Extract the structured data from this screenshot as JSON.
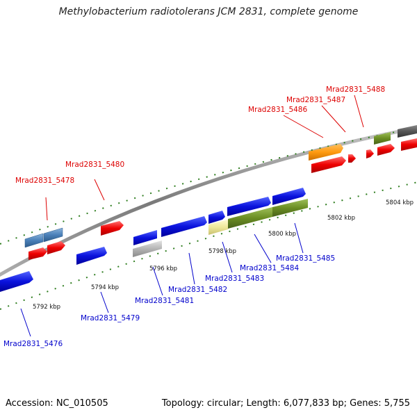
{
  "title": "Methylobacterium radiotolerans JCM 2831, complete genome",
  "footer": {
    "accession": "Accession: NC_010505",
    "topology": "Topology: circular; Length: 6,077,833 bp; Genes: 5,755"
  },
  "colors": {
    "forward_label": "#dd0000",
    "reverse_label": "#0000cc",
    "tick": "#2e7d1e",
    "backbone": "#8a8a8a"
  },
  "kbp_labels": [
    "5792 kbp",
    "5794 kbp",
    "5796 kbp",
    "5798 kbp",
    "5800 kbp",
    "5802 kbp",
    "5804 kbp"
  ],
  "gene_labels_forward": [
    "Mrad2831_5478",
    "Mrad2831_5480",
    "Mrad2831_5486",
    "Mrad2831_5487",
    "Mrad2831_5488"
  ],
  "gene_labels_reverse": [
    "Mrad2831_5476",
    "Mrad2831_5479",
    "Mrad2831_5481",
    "Mrad2831_5482",
    "Mrad2831_5483",
    "Mrad2831_5484",
    "Mrad2831_5485"
  ]
}
